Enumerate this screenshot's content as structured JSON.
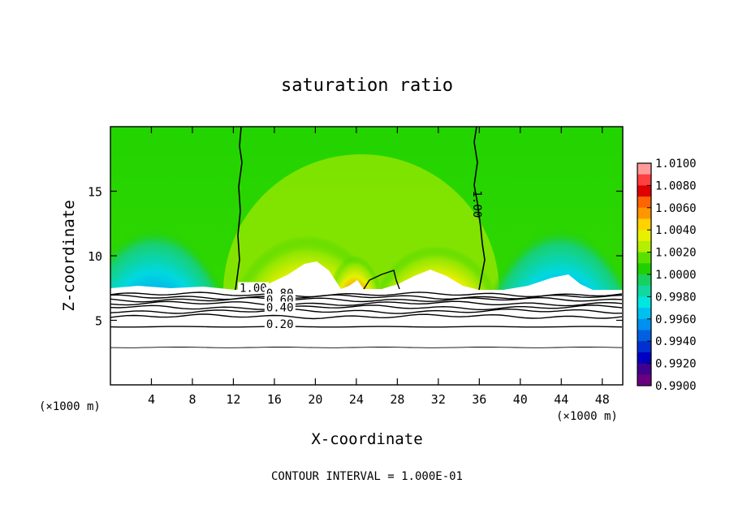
{
  "chart_data": {
    "type": "heatmap",
    "title": "saturation ratio",
    "xlabel": "X-coordinate",
    "ylabel": "Z-coordinate",
    "x_unit": "(×1000 m)",
    "y_unit": "(×1000 m)",
    "xlim": [
      0,
      50
    ],
    "ylim": [
      0,
      20
    ],
    "x_ticks": [
      "4",
      "8",
      "12",
      "16",
      "20",
      "24",
      "28",
      "32",
      "36",
      "40",
      "44",
      "48"
    ],
    "y_ticks": [
      "5",
      "10",
      "15"
    ],
    "footer": "CONTOUR INTERVAL = 1.000E-01",
    "colorbar": {
      "levels": [
        "1.0100",
        "1.0080",
        "1.0060",
        "1.0040",
        "1.0020",
        "1.0000",
        "0.9980",
        "0.9960",
        "0.9940",
        "0.9920",
        "0.9900"
      ],
      "colors": [
        "#ff9a9a",
        "#ff4040",
        "#e00000",
        "#ff6400",
        "#ff9600",
        "#ffd200",
        "#e6f000",
        "#b4ee00",
        "#5ae000",
        "#20d000",
        "#18d060",
        "#10d8a0",
        "#00e6e0",
        "#00c0f0",
        "#0090f0",
        "#0060e0",
        "#0030d0",
        "#0000c0",
        "#400090",
        "#6a0080"
      ]
    },
    "contour_labels": [
      {
        "text": "1.00",
        "x": 35.8,
        "z": 14
      },
      {
        "text": "1.00",
        "x": 12.6,
        "z": 7.2
      },
      {
        "text": "0.80",
        "x": 15.2,
        "z": 6.8
      },
      {
        "text": "0.60",
        "x": 15.2,
        "z": 6.3
      },
      {
        "text": "0.40",
        "x": 15.2,
        "z": 5.7
      },
      {
        "text": "0.20",
        "x": 15.2,
        "z": 4.4
      }
    ],
    "contour_lines_z": [
      7.0,
      6.8,
      6.6,
      6.3,
      6.0,
      5.7,
      5.3,
      4.5,
      2.9
    ],
    "dryline_1_00_x": [
      12.3,
      35.8
    ],
    "terrain_top_z": 7.3
  }
}
